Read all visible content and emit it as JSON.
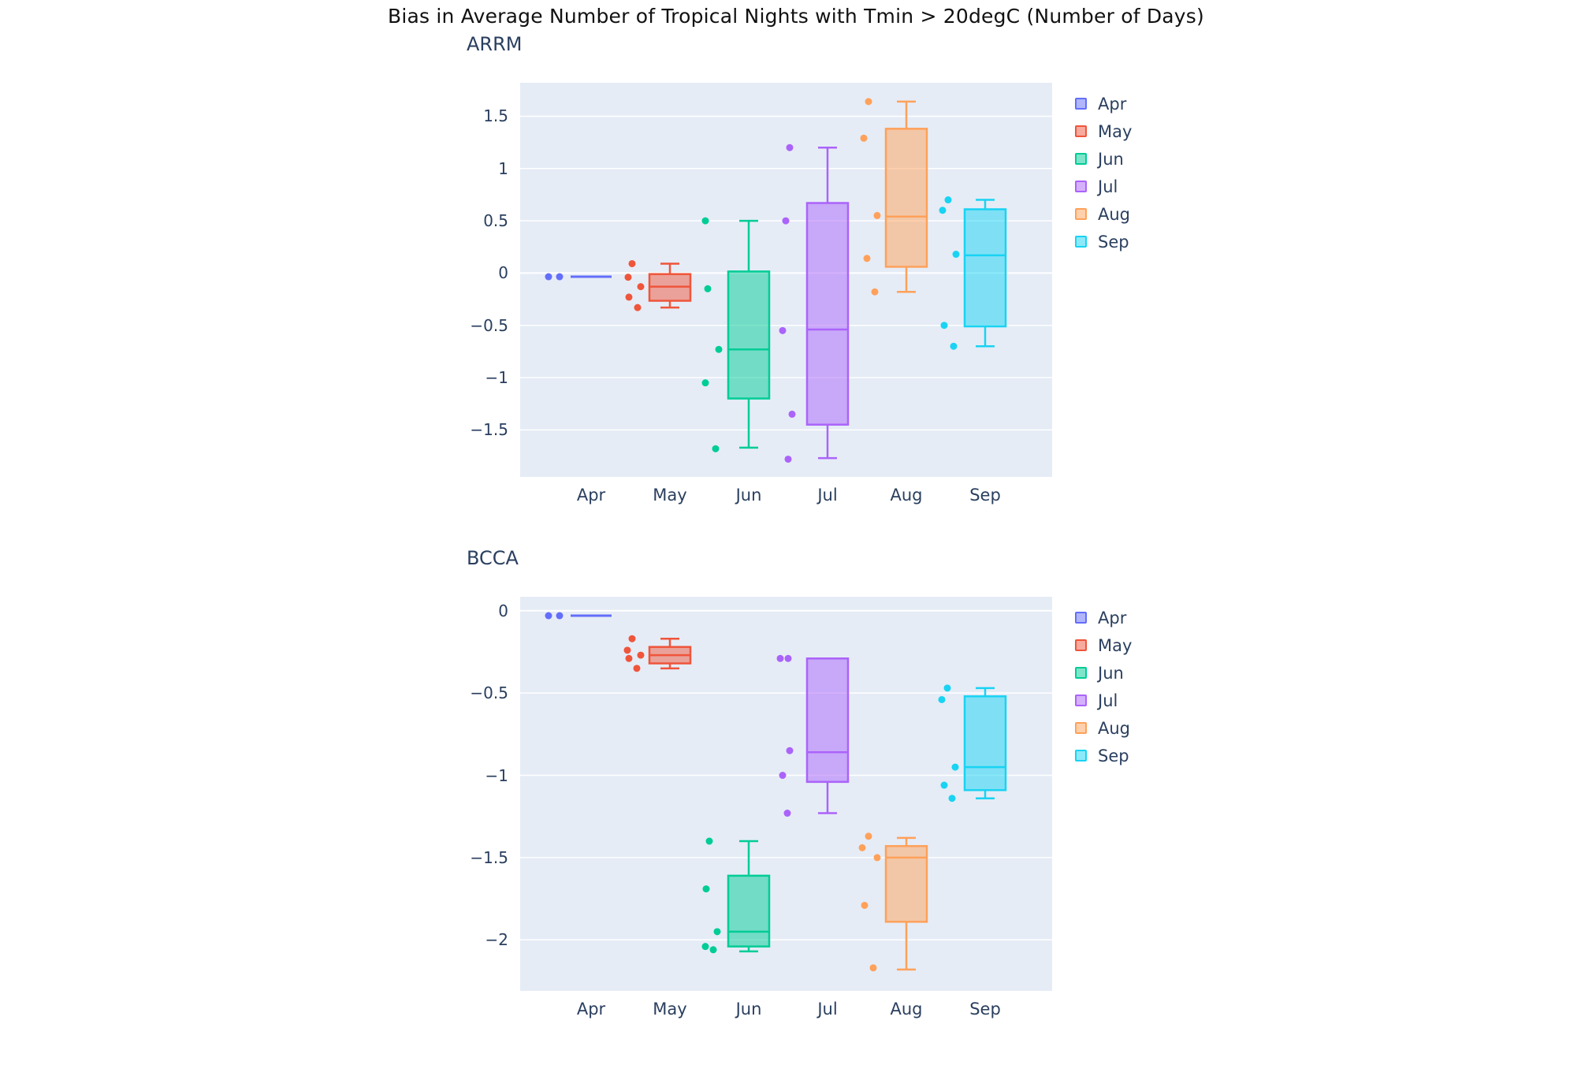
{
  "title": "Bias in Average Number of Tropical Nights with Tmin > 20degC (Number of Days)",
  "months": [
    "Apr",
    "May",
    "Jun",
    "Jul",
    "Aug",
    "Sep"
  ],
  "colors": {
    "Apr": "#636EFA",
    "May": "#EF553B",
    "Jun": "#00CC96",
    "Jul": "#AB63FA",
    "Aug": "#FFA15A",
    "Sep": "#19D3F3"
  },
  "plot_bg": "#E5ECF6",
  "grid_color": "#FFFFFF",
  "text_color": "#2a3f5f",
  "chart_data": [
    {
      "type": "box",
      "title": "ARRM",
      "categories": [
        "Apr",
        "May",
        "Jun",
        "Jul",
        "Aug",
        "Sep"
      ],
      "ylim": [
        -1.95,
        1.82
      ],
      "yticks": [
        1.5,
        1,
        0.5,
        0,
        -0.5,
        -1,
        -1.5
      ],
      "legend": [
        "Apr",
        "May",
        "Jun",
        "Jul",
        "Aug",
        "Sep"
      ],
      "series": [
        {
          "name": "Apr",
          "color": "#636EFA",
          "q1": -0.035,
          "median": -0.035,
          "q3": -0.035,
          "whisker_low": -0.035,
          "whisker_high": -0.035,
          "points": [
            -0.035,
            -0.035
          ],
          "jitter": [
            -54,
            -40
          ]
        },
        {
          "name": "May",
          "color": "#EF553B",
          "q1": -0.265,
          "median": -0.13,
          "q3": -0.01,
          "whisker_low": -0.33,
          "whisker_high": 0.09,
          "points": [
            0.09,
            -0.04,
            -0.13,
            -0.23,
            -0.33
          ],
          "jitter": [
            -48,
            -53,
            -37,
            -52,
            -41
          ]
        },
        {
          "name": "Jun",
          "color": "#00CC96",
          "q1": -1.2,
          "median": -0.73,
          "q3": 0.015,
          "whisker_low": -1.67,
          "whisker_high": 0.5,
          "points": [
            0.5,
            -0.15,
            -0.73,
            -1.05,
            -1.68
          ],
          "jitter": [
            -55,
            -52,
            -38,
            -55,
            -42
          ]
        },
        {
          "name": "Jul",
          "color": "#AB63FA",
          "q1": -1.45,
          "median": -0.54,
          "q3": 0.67,
          "whisker_low": -1.77,
          "whisker_high": 1.2,
          "points": [
            1.2,
            0.5,
            -0.55,
            -1.35,
            -1.78
          ],
          "jitter": [
            -48,
            -53,
            -57,
            -45,
            -50
          ]
        },
        {
          "name": "Aug",
          "color": "#FFA15A",
          "q1": 0.06,
          "median": 0.54,
          "q3": 1.38,
          "whisker_low": -0.18,
          "whisker_high": 1.64,
          "points": [
            1.64,
            1.29,
            0.55,
            0.14,
            -0.18
          ],
          "jitter": [
            -48,
            -54,
            -37,
            -50,
            -40
          ]
        },
        {
          "name": "Sep",
          "color": "#19D3F3",
          "q1": -0.51,
          "median": 0.17,
          "q3": 0.61,
          "whisker_low": -0.7,
          "whisker_high": 0.7,
          "points": [
            0.7,
            0.6,
            0.18,
            -0.5,
            -0.7
          ],
          "jitter": [
            -47,
            -54,
            -37,
            -52,
            -40
          ]
        }
      ]
    },
    {
      "type": "box",
      "title": "BCCA",
      "categories": [
        "Apr",
        "May",
        "Jun",
        "Jul",
        "Aug",
        "Sep"
      ],
      "ylim": [
        -2.31,
        0.085
      ],
      "yticks": [
        0,
        -0.5,
        -1,
        -1.5,
        -2
      ],
      "legend": [
        "Apr",
        "May",
        "Jun",
        "Jul",
        "Aug",
        "Sep"
      ],
      "series": [
        {
          "name": "Apr",
          "color": "#636EFA",
          "q1": -0.03,
          "median": -0.03,
          "q3": -0.03,
          "whisker_low": -0.03,
          "whisker_high": -0.03,
          "points": [
            -0.03,
            -0.03
          ],
          "jitter": [
            -54,
            -40
          ]
        },
        {
          "name": "May",
          "color": "#EF553B",
          "q1": -0.32,
          "median": -0.27,
          "q3": -0.22,
          "whisker_low": -0.35,
          "whisker_high": -0.17,
          "points": [
            -0.17,
            -0.24,
            -0.27,
            -0.29,
            -0.35
          ],
          "jitter": [
            -48,
            -54,
            -37,
            -52,
            -42
          ]
        },
        {
          "name": "Jun",
          "color": "#00CC96",
          "q1": -2.04,
          "median": -1.95,
          "q3": -1.61,
          "whisker_low": -2.07,
          "whisker_high": -1.4,
          "points": [
            -1.4,
            -1.69,
            -1.95,
            -2.04,
            -2.06
          ],
          "jitter": [
            -50,
            -54,
            -40,
            -55,
            -45
          ]
        },
        {
          "name": "Jul",
          "color": "#AB63FA",
          "q1": -1.04,
          "median": -0.86,
          "q3": -0.29,
          "whisker_low": -1.23,
          "whisker_high": -0.29,
          "points": [
            -0.29,
            -0.29,
            -0.85,
            -1.0,
            -1.23
          ],
          "jitter": [
            -60,
            -50,
            -48,
            -57,
            -51
          ]
        },
        {
          "name": "Aug",
          "color": "#FFA15A",
          "q1": -1.89,
          "median": -1.5,
          "q3": -1.43,
          "whisker_low": -2.18,
          "whisker_high": -1.38,
          "points": [
            -1.37,
            -1.44,
            -1.5,
            -1.79,
            -2.17
          ],
          "jitter": [
            -48,
            -56,
            -37,
            -53,
            -42
          ]
        },
        {
          "name": "Sep",
          "color": "#19D3F3",
          "q1": -1.09,
          "median": -0.95,
          "q3": -0.52,
          "whisker_low": -1.14,
          "whisker_high": -0.47,
          "points": [
            -0.47,
            -0.54,
            -0.95,
            -1.06,
            -1.14
          ],
          "jitter": [
            -48,
            -55,
            -38,
            -52,
            -42
          ]
        }
      ]
    }
  ]
}
